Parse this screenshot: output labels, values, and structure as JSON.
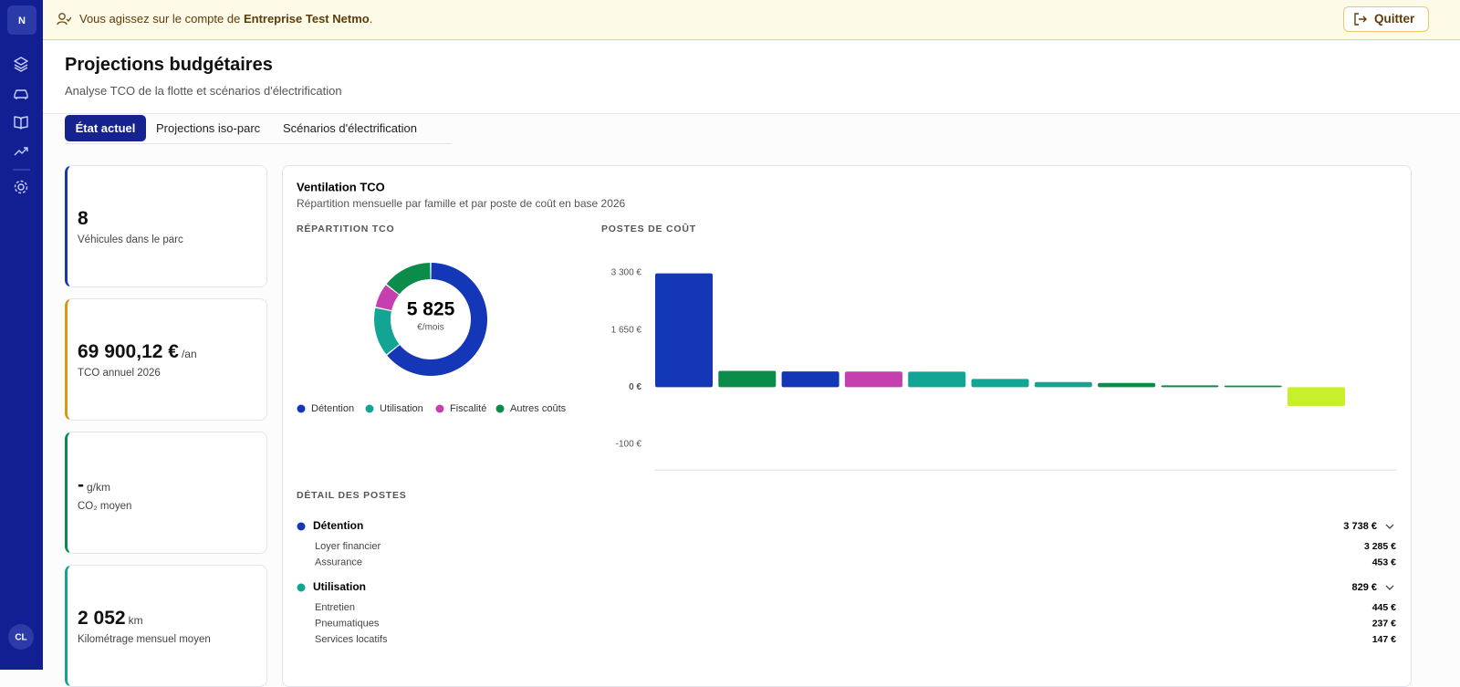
{
  "banner": {
    "text": "Vous agissez sur le compte de",
    "account": "Entreprise Test Netmo",
    "suffix": ".",
    "button": "Quitter"
  },
  "sidebar": {
    "logo": "N",
    "user": "CL"
  },
  "header": {
    "title": "Projections budgétaires",
    "subtitle": "Analyse TCO de la flotte et scénarios d'électrification"
  },
  "tabs": [
    "État actuel",
    "Projections iso-parc",
    "Scénarios d'électrification"
  ],
  "kpis": [
    {
      "value": "8",
      "label": "Véhicules dans le parc"
    },
    {
      "value": "69 900,12 €",
      "unit": "/an",
      "label": "TCO annuel 2026"
    },
    {
      "value": "-",
      "unit": "g/km",
      "label": "CO₂ moyen"
    },
    {
      "value": "2 052",
      "unit": "km",
      "label": "Kilométrage mensuel moyen"
    }
  ],
  "panel": {
    "title": "Ventilation TCO",
    "subtitle": "Répartition mensuelle par famille et par poste de coût en base 2026"
  },
  "chart_data": [
    {
      "type": "donut",
      "title": "RÉPARTITION TCO",
      "center_value": "5 825",
      "center_unit": "€/mois",
      "categories": [
        "Détention",
        "Utilisation",
        "Fiscalité",
        "Autres coûts"
      ],
      "values": [
        3738,
        829,
        417,
        841
      ],
      "colors": [
        "#1437b8",
        "#13a594",
        "#c53fae",
        "#0b8c4a"
      ]
    },
    {
      "type": "bar",
      "title": "POSTES DE COÛT",
      "values": [
        3285,
        470,
        453,
        450,
        445,
        237,
        147,
        120,
        50,
        45,
        -33
      ],
      "colors": [
        "#1437b8",
        "#0b8c4a",
        "#1437b8",
        "#c53fae",
        "#13a594",
        "#13a594",
        "#13a594",
        "#0b8c4a",
        "#0b8c4a",
        "#0b8c4a",
        "#c8f02a"
      ],
      "ylim": [
        -145,
        3450
      ],
      "yticks": [
        {
          "value": 3300,
          "label": "3 300 €"
        },
        {
          "value": 1650,
          "label": "1 650 €"
        },
        {
          "value": 0,
          "label": "0 €"
        },
        {
          "value": -100,
          "label": "-100 €"
        }
      ]
    }
  ],
  "details": {
    "title": "DÉTAIL DES POSTES",
    "groups": [
      {
        "name": "Détention",
        "total": "3 738 €",
        "items": [
          {
            "name": "Loyer financier",
            "value": "3 285 €"
          },
          {
            "name": "Assurance",
            "value": "453 €"
          }
        ]
      },
      {
        "name": "Utilisation",
        "total": "829 €",
        "items": [
          {
            "name": "Entretien",
            "value": "445 €"
          },
          {
            "name": "Pneumatiques",
            "value": "237 €"
          },
          {
            "name": "Services locatifs",
            "value": "147 €"
          }
        ]
      }
    ]
  }
}
